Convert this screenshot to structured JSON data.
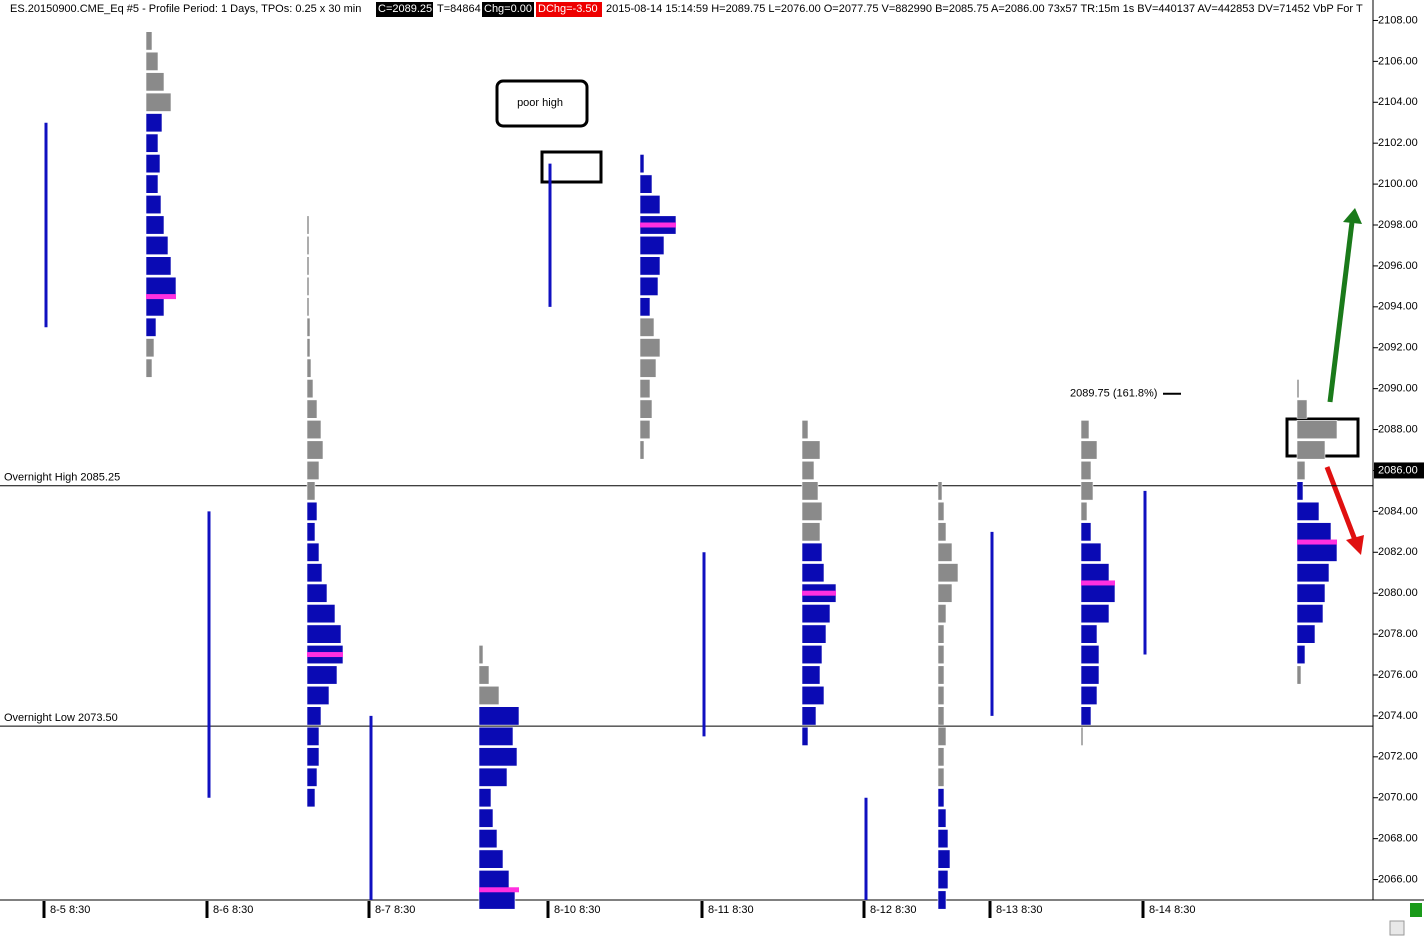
{
  "chart_data": {
    "type": "market_profile",
    "header": {
      "symbol": "ES.20150900.CME_Eq  #5 - Profile Period: 1 Days, TPOs: 0.25 x 30 min",
      "close": "C=2089.25",
      "ticks": "T=84864",
      "change": "Chg=0.00",
      "day_change": "DChg=-3.50",
      "stats": "2015-08-14 15:14:59 H=2089.75 L=2076.00 O=2077.75 V=882990 B=2085.75 A=2086.00 73x57 TR:15m 1s BV=440137 AV=442853 DV=71452 VbP For T"
    },
    "current_price": {
      "value": 2086,
      "label": "2086.00"
    },
    "ylim": [
      2065,
      2109
    ],
    "yticks": [
      {
        "value": 2066,
        "label": "2066.00"
      },
      {
        "value": 2068,
        "label": "2068.00"
      },
      {
        "value": 2070,
        "label": "2070.00"
      },
      {
        "value": 2072,
        "label": "2072.00"
      },
      {
        "value": 2074,
        "label": "2074.00"
      },
      {
        "value": 2076,
        "label": "2076.00"
      },
      {
        "value": 2078,
        "label": "2078.00"
      },
      {
        "value": 2080,
        "label": "2080.00"
      },
      {
        "value": 2082,
        "label": "2082.00"
      },
      {
        "value": 2084,
        "label": "2084.00"
      },
      {
        "value": 2086,
        "label": "2086.00"
      },
      {
        "value": 2088,
        "label": "2088.00"
      },
      {
        "value": 2090,
        "label": "2090.00"
      },
      {
        "value": 2092,
        "label": "2092.00"
      },
      {
        "value": 2094,
        "label": "2094.00"
      },
      {
        "value": 2096,
        "label": "2096.00"
      },
      {
        "value": 2098,
        "label": "2098.00"
      },
      {
        "value": 2100,
        "label": "2100.00"
      },
      {
        "value": 2102,
        "label": "2102.00"
      },
      {
        "value": 2104,
        "label": "2104.00"
      },
      {
        "value": 2106,
        "label": "2106.00"
      },
      {
        "value": 2108,
        "label": "2108.00"
      }
    ],
    "levels": [
      {
        "label": "Overnight High  2085.25",
        "value": 2085.25
      },
      {
        "label": "Overnight Low  2073.50",
        "value": 2073.5
      }
    ],
    "fib_label": "2089.75  (161.8%)",
    "fib_value": 2089.75,
    "annotation": "poor high",
    "sessions": [
      {
        "name": "8-5 8:30",
        "low": 2091,
        "blue": [
          2093,
          2103
        ],
        "poc": 2094.5,
        "values": [
          6,
          8,
          10,
          18,
          30,
          25,
          22,
          18,
          15,
          12,
          14,
          12,
          16,
          25,
          18,
          12,
          6
        ]
      },
      {
        "name": "8-6 8:30",
        "low": 2070,
        "blue": [
          2070,
          2084
        ],
        "poc": 2077,
        "values": [
          8,
          10,
          12,
          12,
          14,
          22,
          30,
          36,
          34,
          28,
          20,
          15,
          12,
          8,
          10,
          8,
          12,
          16,
          14,
          10,
          6,
          4,
          3,
          3,
          2,
          2,
          2,
          2,
          2
        ]
      },
      {
        "name": "8-7 8:30",
        "low": 2065,
        "blue": [
          2065,
          2074
        ],
        "poc": 2065.5,
        "values": [
          36,
          30,
          24,
          18,
          14,
          12,
          28,
          38,
          34,
          40,
          20,
          10,
          4
        ]
      },
      {
        "name": "8-10 8:30",
        "low": 2087,
        "blue": [
          2094,
          2101
        ],
        "poc": 2098,
        "values": [
          4,
          10,
          12,
          10,
          16,
          20,
          14,
          10,
          18,
          20,
          24,
          36,
          20,
          12,
          4
        ]
      },
      {
        "name": "8-11 8:30",
        "low": 2073,
        "blue": [
          2073,
          2082
        ],
        "poc": 2080,
        "values": [
          6,
          14,
          22,
          18,
          20,
          24,
          28,
          34,
          22,
          20,
          18,
          20,
          16,
          12,
          18,
          6
        ]
      },
      {
        "name": "8-12 8:30",
        "low": 2065,
        "blue": [
          2065,
          2070
        ],
        "values": [
          8,
          10,
          12,
          10,
          8,
          6,
          6,
          6,
          8,
          6,
          6,
          6,
          6,
          6,
          8,
          14,
          20,
          14,
          8,
          6,
          4
        ]
      },
      {
        "name": "8-13 8:30",
        "low": 2073,
        "blue": [
          2074,
          2083
        ],
        "poc": 2080.5,
        "values": [
          2,
          10,
          16,
          18,
          18,
          16,
          28,
          34,
          28,
          20,
          10,
          6,
          12,
          10,
          16,
          8
        ]
      },
      {
        "name": "8-14 8:30",
        "low": 2076,
        "blue": [
          2077,
          2085
        ],
        "poc": 2082.5,
        "values": [
          4,
          8,
          18,
          26,
          28,
          32,
          40,
          34,
          22,
          6,
          8,
          28,
          40,
          10,
          2
        ]
      }
    ]
  }
}
